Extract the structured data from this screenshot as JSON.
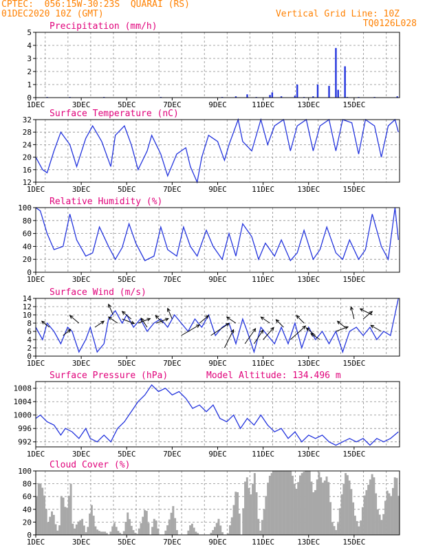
{
  "header": {
    "line1": "CPTEC:  056:15W-30:23S  QUARAI (RS)",
    "line2": "01DEC2020 10Z (GMT)",
    "grid_note": "Vertical Grid Line: 10Z",
    "code": "TQ0126L028"
  },
  "colors": {
    "header": "#ff8000",
    "title": "#e0007a",
    "line": "#2233dd",
    "cloud": "#a8a8a8",
    "grid": "#888888"
  },
  "chart_data": [
    {
      "type": "bar",
      "title": "Precipitation (mm/h)",
      "ylim": [
        0,
        5
      ],
      "yticks": [
        0,
        1,
        2,
        3,
        4,
        5
      ],
      "x_ticks": [
        "1DEC",
        "3DEC",
        "5DEC",
        "7DEC",
        "9DEC",
        "11DEC",
        "13DEC",
        "15DEC"
      ],
      "x_unit": "days since 01DEC 00Z",
      "series": [
        {
          "values": [
            [
              0.5,
              0.05
            ],
            [
              1.5,
              0.05
            ],
            [
              3.0,
              0.05
            ],
            [
              5.5,
              0.05
            ],
            [
              8.2,
              0.05
            ],
            [
              8.8,
              0.1
            ],
            [
              9.3,
              0.25
            ],
            [
              9.7,
              0.05
            ],
            [
              10.3,
              0.2
            ],
            [
              10.4,
              0.4
            ],
            [
              10.8,
              0.1
            ],
            [
              11.4,
              0.15
            ],
            [
              11.5,
              1.0
            ],
            [
              11.8,
              0.05
            ],
            [
              12.2,
              0.1
            ],
            [
              12.4,
              1.0
            ],
            [
              12.9,
              0.9
            ],
            [
              13.2,
              3.8
            ],
            [
              13.3,
              0.6
            ],
            [
              13.6,
              2.4
            ],
            [
              13.7,
              0.05
            ],
            [
              14.2,
              0.05
            ],
            [
              14.9,
              0.05
            ],
            [
              15.9,
              0.1
            ]
          ]
        }
      ]
    },
    {
      "type": "line",
      "title": "Surface Temperature (nC)",
      "ylim": [
        12,
        32
      ],
      "yticks": [
        12,
        16,
        20,
        24,
        28,
        32
      ],
      "series": [
        {
          "x": [
            0.0,
            0.3,
            0.5,
            0.8,
            1.1,
            1.5,
            1.8,
            2.2,
            2.5,
            2.9,
            3.3,
            3.5,
            3.9,
            4.2,
            4.5,
            4.9,
            5.1,
            5.5,
            5.8,
            6.2,
            6.6,
            6.8,
            7.1,
            7.3,
            7.6,
            8.0,
            8.3,
            8.5,
            8.9,
            9.1,
            9.5,
            9.9,
            10.2,
            10.5,
            10.9,
            11.2,
            11.5,
            11.9,
            12.2,
            12.5,
            12.9,
            13.2,
            13.5,
            13.9,
            14.2,
            14.5,
            14.9,
            15.2,
            15.5,
            15.8,
            15.95
          ],
          "y": [
            20,
            16,
            15,
            22,
            28,
            24,
            17,
            26,
            30,
            25,
            17,
            27,
            30,
            24,
            16,
            22,
            27,
            21,
            14,
            21,
            23,
            17,
            12,
            20,
            27,
            25,
            19,
            24,
            32,
            25,
            22,
            32,
            24,
            30,
            32,
            22,
            30,
            32,
            22,
            30,
            32,
            22,
            32,
            31,
            21,
            32,
            30,
            20,
            30,
            32,
            28
          ]
        }
      ]
    },
    {
      "type": "line",
      "title": "Relative Humidity (%)",
      "ylim": [
        0,
        100
      ],
      "yticks": [
        0,
        20,
        40,
        60,
        80,
        100
      ],
      "series": [
        {
          "x": [
            0.0,
            0.2,
            0.5,
            0.8,
            1.2,
            1.5,
            1.8,
            2.2,
            2.5,
            2.8,
            3.2,
            3.5,
            3.8,
            4.1,
            4.4,
            4.8,
            5.2,
            5.5,
            5.8,
            6.2,
            6.5,
            6.8,
            7.1,
            7.5,
            7.8,
            8.2,
            8.5,
            8.8,
            9.1,
            9.5,
            9.8,
            10.1,
            10.5,
            10.8,
            11.2,
            11.5,
            11.8,
            12.2,
            12.5,
            12.8,
            13.2,
            13.5,
            13.8,
            14.2,
            14.5,
            14.8,
            15.2,
            15.5,
            15.8,
            15.95
          ],
          "y": [
            100,
            95,
            60,
            35,
            40,
            90,
            50,
            25,
            30,
            70,
            40,
            20,
            38,
            75,
            45,
            18,
            25,
            70,
            35,
            25,
            70,
            40,
            25,
            65,
            40,
            20,
            60,
            25,
            75,
            55,
            20,
            45,
            25,
            50,
            18,
            30,
            65,
            20,
            35,
            70,
            30,
            20,
            50,
            20,
            35,
            90,
            40,
            20,
            100,
            50
          ]
        }
      ]
    },
    {
      "type": "line",
      "title": "Surface Wind (m/s)",
      "ylim": [
        0,
        14
      ],
      "yticks": [
        0,
        2,
        4,
        6,
        8,
        10,
        12,
        14
      ],
      "series": [
        {
          "x": [
            0.0,
            0.3,
            0.5,
            0.8,
            1.1,
            1.4,
            1.6,
            1.9,
            2.2,
            2.4,
            2.7,
            3.0,
            3.2,
            3.5,
            3.8,
            4.0,
            4.3,
            4.6,
            4.9,
            5.2,
            5.5,
            5.8,
            6.1,
            6.4,
            6.7,
            7.0,
            7.3,
            7.6,
            7.9,
            8.2,
            8.5,
            8.8,
            9.1,
            9.3,
            9.6,
            9.9,
            10.2,
            10.5,
            10.8,
            11.1,
            11.4,
            11.7,
            12.0,
            12.3,
            12.6,
            12.9,
            13.2,
            13.5,
            13.8,
            14.1,
            14.4,
            14.7,
            15.0,
            15.3,
            15.6,
            15.95
          ],
          "y": [
            7,
            4,
            8,
            6,
            3,
            7,
            6,
            1,
            4,
            7,
            1,
            3,
            9,
            11,
            8,
            10,
            7,
            9,
            6,
            8,
            9,
            7,
            10,
            8,
            6,
            9,
            7,
            10,
            5,
            7,
            8,
            3,
            9,
            6,
            1,
            7,
            5,
            3,
            7,
            3,
            8,
            2,
            7,
            4,
            6,
            3,
            6,
            1,
            6,
            7,
            5,
            7,
            4,
            6,
            5,
            14
          ]
        }
      ],
      "vectors": [
        {
          "x": 0.6,
          "y": 7,
          "dx": -5,
          "dy": -4
        },
        {
          "x": 1.2,
          "y": 5,
          "dx": 5,
          "dy": -4
        },
        {
          "x": 1.9,
          "y": 8,
          "dx": -6,
          "dy": -5
        },
        {
          "x": 2.6,
          "y": 7,
          "dx": 6,
          "dy": -4
        },
        {
          "x": 3.4,
          "y": 10,
          "dx": -3,
          "dy": -7
        },
        {
          "x": 3.6,
          "y": 8,
          "dx": -6,
          "dy": -4
        },
        {
          "x": 3.8,
          "y": 9,
          "dx": 8,
          "dy": 3
        },
        {
          "x": 4.2,
          "y": 9,
          "dx": -6,
          "dy": -5
        },
        {
          "x": 4.5,
          "y": 8,
          "dx": 8,
          "dy": -3
        },
        {
          "x": 4.9,
          "y": 7,
          "dx": -4,
          "dy": -6
        },
        {
          "x": 5.3,
          "y": 8,
          "dx": 8,
          "dy": -3
        },
        {
          "x": 5.6,
          "y": 8,
          "dx": -5,
          "dy": -5
        },
        {
          "x": 6.0,
          "y": 9,
          "dx": -3,
          "dy": -7
        },
        {
          "x": 6.4,
          "y": 5,
          "dx": 12,
          "dy": -7
        },
        {
          "x": 7.2,
          "y": 8,
          "dx": 6,
          "dy": -5
        },
        {
          "x": 7.7,
          "y": 5,
          "dx": 12,
          "dy": -8
        },
        {
          "x": 8.3,
          "y": 2,
          "dx": 6,
          "dy": -12
        },
        {
          "x": 8.8,
          "y": 8,
          "dx": -6,
          "dy": -4
        },
        {
          "x": 9.2,
          "y": 3,
          "dx": 7,
          "dy": -10
        },
        {
          "x": 9.6,
          "y": 3,
          "dx": 6,
          "dy": -9
        },
        {
          "x": 10.0,
          "y": 4,
          "dx": 7,
          "dy": -8
        },
        {
          "x": 10.3,
          "y": 8,
          "dx": -6,
          "dy": -4
        },
        {
          "x": 10.9,
          "y": 7,
          "dx": -5,
          "dy": -5
        },
        {
          "x": 11.2,
          "y": 4,
          "dx": 10,
          "dy": -9
        },
        {
          "x": 11.8,
          "y": 8,
          "dx": -5,
          "dy": -5
        },
        {
          "x": 12.3,
          "y": 5,
          "dx": -6,
          "dy": -5
        },
        {
          "x": 12.5,
          "y": 4,
          "dx": -6,
          "dy": -4
        },
        {
          "x": 13.2,
          "y": 6,
          "dx": 8,
          "dy": -3
        },
        {
          "x": 13.6,
          "y": 7,
          "dx": -5,
          "dy": -4
        },
        {
          "x": 14.0,
          "y": 9,
          "dx": -2,
          "dy": -8
        },
        {
          "x": 14.4,
          "y": 9,
          "dx": 6,
          "dy": -5
        },
        {
          "x": 14.8,
          "y": 10,
          "dx": -8,
          "dy": -4
        },
        {
          "x": 15.2,
          "y": 6,
          "dx": -7,
          "dy": -4
        }
      ]
    },
    {
      "type": "line",
      "title": "Surface Pressure (hPa)",
      "subtitle": "Model Altitude: 134.496 m",
      "ylim": [
        990.5,
        1010
      ],
      "yticks": [
        992,
        996,
        1000,
        1004,
        1008
      ],
      "series": [
        {
          "x": [
            0.0,
            0.2,
            0.5,
            0.8,
            1.1,
            1.3,
            1.6,
            1.9,
            2.2,
            2.4,
            2.7,
            3.0,
            3.3,
            3.6,
            3.9,
            4.2,
            4.5,
            4.8,
            5.1,
            5.4,
            5.7,
            6.0,
            6.3,
            6.6,
            6.9,
            7.2,
            7.5,
            7.8,
            8.1,
            8.4,
            8.7,
            9.0,
            9.3,
            9.6,
            9.9,
            10.2,
            10.5,
            10.8,
            11.1,
            11.4,
            11.7,
            12.0,
            12.3,
            12.6,
            12.9,
            13.2,
            13.5,
            13.8,
            14.1,
            14.4,
            14.7,
            15.0,
            15.3,
            15.6,
            15.95
          ],
          "y": [
            999,
            1000,
            998,
            997,
            994,
            996,
            995,
            993,
            996,
            993,
            992,
            994,
            992,
            996,
            998,
            1001,
            1004,
            1006,
            1009,
            1007,
            1008,
            1006,
            1007,
            1005,
            1002,
            1003,
            1001,
            1003,
            999,
            998,
            1000,
            996,
            999,
            997,
            1000,
            997,
            995,
            996,
            993,
            995,
            992,
            994,
            993,
            994,
            992,
            991,
            992,
            993,
            992,
            993,
            991,
            993,
            992,
            993,
            995
          ]
        }
      ]
    },
    {
      "type": "area",
      "title": "Cloud Cover (%)",
      "ylim": [
        0,
        100
      ],
      "yticks": [
        0,
        20,
        40,
        60,
        80,
        100
      ],
      "series": [
        {
          "x": [
            0.0,
            0.1,
            0.3,
            0.5,
            0.7,
            0.9,
            1.0,
            1.1,
            1.3,
            1.5,
            1.6,
            1.8,
            2.0,
            2.2,
            2.4,
            2.6,
            2.8,
            3.0,
            3.2,
            3.4,
            3.6,
            3.8,
            4.0,
            4.2,
            4.4,
            4.6,
            4.8,
            5.0,
            5.2,
            5.4,
            5.6,
            5.8,
            6.0,
            6.2,
            6.4,
            6.6,
            6.8,
            7.0,
            7.2,
            7.4,
            7.6,
            7.8,
            8.0,
            8.2,
            8.4,
            8.6,
            8.8,
            9.0,
            9.2,
            9.4,
            9.6,
            9.8,
            10.0,
            10.2,
            10.4,
            10.6,
            10.8,
            11.0,
            11.2,
            11.4,
            11.6,
            11.8,
            12.0,
            12.2,
            12.4,
            12.6,
            12.8,
            13.0,
            13.2,
            13.4,
            13.6,
            13.8,
            14.0,
            14.2,
            14.4,
            14.6,
            14.8,
            15.0,
            15.2,
            15.4,
            15.6,
            15.8,
            15.95
          ],
          "y": [
            60,
            85,
            70,
            20,
            40,
            5,
            15,
            70,
            35,
            80,
            5,
            20,
            25,
            0,
            50,
            10,
            5,
            5,
            0,
            20,
            5,
            0,
            35,
            10,
            0,
            20,
            45,
            0,
            30,
            0,
            0,
            20,
            45,
            0,
            0,
            0,
            20,
            5,
            0,
            0,
            0,
            10,
            25,
            0,
            0,
            30,
            80,
            0,
            100,
            60,
            100,
            0,
            40,
            90,
            100,
            100,
            100,
            100,
            100,
            70,
            95,
            100,
            100,
            60,
            100,
            80,
            95,
            20,
            5,
            60,
            100,
            80,
            30,
            10,
            60,
            80,
            100,
            40,
            20,
            70,
            60,
            100,
            50
          ]
        }
      ]
    }
  ]
}
